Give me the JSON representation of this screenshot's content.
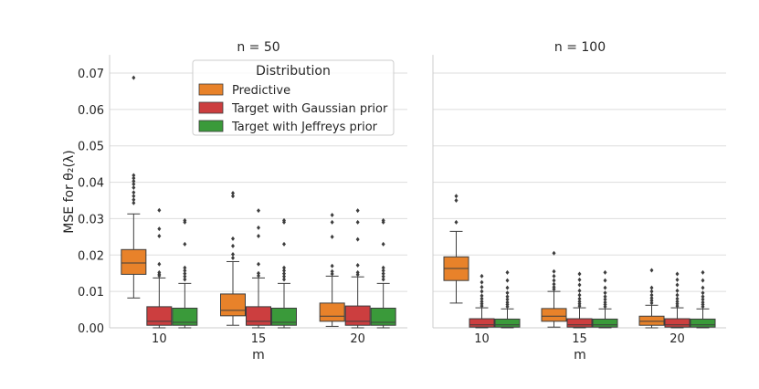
{
  "chart_data": {
    "type": "box",
    "ylabel": "MSE for θ₂(λ)",
    "xlabel": "m",
    "ylim": [
      0,
      0.075
    ],
    "yticks": [
      0.0,
      0.01,
      0.02,
      0.03,
      0.04,
      0.05,
      0.06,
      0.07
    ],
    "ytick_labels": [
      "0.00",
      "0.01",
      "0.02",
      "0.03",
      "0.04",
      "0.05",
      "0.06",
      "0.07"
    ],
    "categories": [
      "10",
      "15",
      "20"
    ],
    "legend": {
      "title": "Distribution",
      "entries": [
        {
          "label": "Predictive",
          "color": "#e8822a"
        },
        {
          "label": "Target with Gaussian prior",
          "color": "#cc3e3f"
        },
        {
          "label": "Target with Jeffreys prior",
          "color": "#3a9a3a"
        }
      ]
    },
    "panels": [
      {
        "title": "n = 50",
        "groups": [
          {
            "m": "10",
            "boxes": [
              {
                "series": "Predictive",
                "q1": 0.0147,
                "median": 0.0178,
                "q3": 0.0215,
                "wlo": 0.0082,
                "whi": 0.0313,
                "outliers": [
                  0.0343,
                  0.0352,
                  0.0362,
                  0.0372,
                  0.0385,
                  0.0395,
                  0.0403,
                  0.0411,
                  0.0419,
                  0.0687
                ]
              },
              {
                "series": "Target with Gaussian prior",
                "q1": 0.0007,
                "median": 0.0018,
                "q3": 0.0058,
                "wlo": 0.0,
                "whi": 0.0137,
                "outliers": [
                  0.0143,
                  0.0147,
                  0.0152,
                  0.0175,
                  0.0252,
                  0.0272,
                  0.0323
                ]
              },
              {
                "series": "Target with Jeffreys prior",
                "q1": 0.0007,
                "median": 0.0015,
                "q3": 0.0054,
                "wlo": 0.0,
                "whi": 0.0122,
                "outliers": [
                  0.0133,
                  0.0141,
                  0.0149,
                  0.0157,
                  0.0165,
                  0.023,
                  0.029,
                  0.0295
                ]
              }
            ]
          },
          {
            "m": "15",
            "boxes": [
              {
                "series": "Predictive",
                "q1": 0.0033,
                "median": 0.0048,
                "q3": 0.0093,
                "wlo": 0.0007,
                "whi": 0.0182,
                "outliers": [
                  0.0192,
                  0.0202,
                  0.0225,
                  0.0245,
                  0.0362,
                  0.037
                ]
              },
              {
                "series": "Target with Gaussian prior",
                "q1": 0.0007,
                "median": 0.0018,
                "q3": 0.0058,
                "wlo": 0.0,
                "whi": 0.0137,
                "outliers": [
                  0.0143,
                  0.015,
                  0.0175,
                  0.0252,
                  0.0275,
                  0.0322
                ]
              },
              {
                "series": "Target with Jeffreys prior",
                "q1": 0.0007,
                "median": 0.0015,
                "q3": 0.0054,
                "wlo": 0.0,
                "whi": 0.0122,
                "outliers": [
                  0.0133,
                  0.0141,
                  0.0149,
                  0.0157,
                  0.0165,
                  0.023,
                  0.029,
                  0.0295
                ]
              }
            ]
          },
          {
            "m": "20",
            "boxes": [
              {
                "series": "Predictive",
                "q1": 0.0018,
                "median": 0.0032,
                "q3": 0.0068,
                "wlo": 0.0004,
                "whi": 0.0142,
                "outliers": [
                  0.0148,
                  0.0155,
                  0.017,
                  0.025,
                  0.029,
                  0.031
                ]
              },
              {
                "series": "Target with Gaussian prior",
                "q1": 0.0007,
                "median": 0.0018,
                "q3": 0.006,
                "wlo": 0.0,
                "whi": 0.014,
                "outliers": [
                  0.0146,
                  0.0152,
                  0.0172,
                  0.0243,
                  0.029,
                  0.0322
                ]
              },
              {
                "series": "Target with Jeffreys prior",
                "q1": 0.0007,
                "median": 0.0015,
                "q3": 0.0054,
                "wlo": 0.0,
                "whi": 0.0122,
                "outliers": [
                  0.0133,
                  0.0141,
                  0.0149,
                  0.0157,
                  0.0165,
                  0.023,
                  0.029,
                  0.0295
                ]
              }
            ]
          }
        ]
      },
      {
        "title": "n = 100",
        "groups": [
          {
            "m": "10",
            "boxes": [
              {
                "series": "Predictive",
                "q1": 0.013,
                "median": 0.0163,
                "q3": 0.0195,
                "wlo": 0.0068,
                "whi": 0.0265,
                "outliers": [
                  0.029,
                  0.035,
                  0.0362
                ]
              },
              {
                "series": "Target with Gaussian prior",
                "q1": 0.0002,
                "median": 0.0008,
                "q3": 0.0025,
                "wlo": 0.0,
                "whi": 0.0055,
                "outliers": [
                  0.006,
                  0.0066,
                  0.0072,
                  0.008,
                  0.0088,
                  0.01,
                  0.0112,
                  0.0125,
                  0.0142
                ]
              },
              {
                "series": "Target with Jeffreys prior",
                "q1": 0.0002,
                "median": 0.0008,
                "q3": 0.0024,
                "wlo": 0.0,
                "whi": 0.0052,
                "outliers": [
                  0.0058,
                  0.0064,
                  0.007,
                  0.0078,
                  0.0086,
                  0.0096,
                  0.011,
                  0.013,
                  0.0152
                ]
              }
            ]
          },
          {
            "m": "15",
            "boxes": [
              {
                "series": "Predictive",
                "q1": 0.0018,
                "median": 0.0032,
                "q3": 0.0053,
                "wlo": 0.0002,
                "whi": 0.01,
                "outliers": [
                  0.0106,
                  0.0112,
                  0.012,
                  0.013,
                  0.0142,
                  0.0155,
                  0.0205
                ]
              },
              {
                "series": "Target with Gaussian prior",
                "q1": 0.0002,
                "median": 0.0008,
                "q3": 0.0025,
                "wlo": 0.0,
                "whi": 0.0055,
                "outliers": [
                  0.006,
                  0.0066,
                  0.0072,
                  0.008,
                  0.009,
                  0.0102,
                  0.0118,
                  0.0132,
                  0.0148
                ]
              },
              {
                "series": "Target with Jeffreys prior",
                "q1": 0.0002,
                "median": 0.0008,
                "q3": 0.0024,
                "wlo": 0.0,
                "whi": 0.0052,
                "outliers": [
                  0.0058,
                  0.0064,
                  0.007,
                  0.0078,
                  0.0086,
                  0.0096,
                  0.011,
                  0.013,
                  0.0152
                ]
              }
            ]
          },
          {
            "m": "20",
            "boxes": [
              {
                "series": "Predictive",
                "q1": 0.0007,
                "median": 0.0018,
                "q3": 0.0032,
                "wlo": 0.0,
                "whi": 0.0062,
                "outliers": [
                  0.0068,
                  0.0075,
                  0.0082,
                  0.009,
                  0.01,
                  0.011,
                  0.0158
                ]
              },
              {
                "series": "Target with Gaussian prior",
                "q1": 0.0002,
                "median": 0.0008,
                "q3": 0.0025,
                "wlo": 0.0,
                "whi": 0.0055,
                "outliers": [
                  0.006,
                  0.0066,
                  0.0072,
                  0.008,
                  0.009,
                  0.0102,
                  0.0118,
                  0.0132,
                  0.0148
                ]
              },
              {
                "series": "Target with Jeffreys prior",
                "q1": 0.0002,
                "median": 0.0008,
                "q3": 0.0024,
                "wlo": 0.0,
                "whi": 0.0052,
                "outliers": [
                  0.0058,
                  0.0064,
                  0.007,
                  0.0078,
                  0.0086,
                  0.0096,
                  0.011,
                  0.013,
                  0.0152
                ]
              }
            ]
          }
        ]
      }
    ]
  }
}
